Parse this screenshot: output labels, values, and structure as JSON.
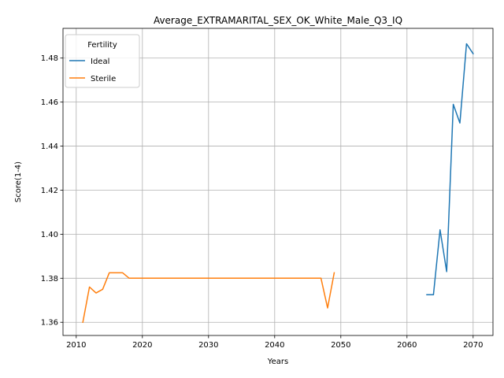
{
  "chart_data": {
    "type": "line",
    "title": "Average_EXTRAMARITAL_SEX_OK_White_Male_Q3_IQ",
    "xlabel": "Years",
    "ylabel": "Score(1-4)",
    "xlim": [
      2008,
      2073
    ],
    "ylim": [
      1.354,
      1.4935
    ],
    "xticks": [
      2010,
      2020,
      2030,
      2040,
      2050,
      2060,
      2070
    ],
    "yticks": [
      1.36,
      1.38,
      1.4,
      1.42,
      1.44,
      1.46,
      1.48
    ],
    "grid": true,
    "legend": {
      "title": "Fertility",
      "placement": "top-left"
    },
    "series": [
      {
        "name": "Ideal",
        "color": "#1f77b4",
        "x": [
          2063,
          2064,
          2065,
          2066,
          2067,
          2068,
          2069,
          2070
        ],
        "y": [
          1.3725,
          1.3725,
          1.402,
          1.383,
          1.459,
          1.4505,
          1.4865,
          1.482
        ]
      },
      {
        "name": "Sterile",
        "color": "#ff7f0e",
        "x": [
          2011,
          2012,
          2013,
          2014,
          2015,
          2016,
          2017,
          2018,
          2019,
          2020,
          2021,
          2022,
          2023,
          2024,
          2025,
          2026,
          2027,
          2028,
          2029,
          2030,
          2031,
          2032,
          2033,
          2034,
          2035,
          2036,
          2037,
          2038,
          2039,
          2040,
          2041,
          2042,
          2043,
          2044,
          2045,
          2046,
          2047,
          2048,
          2049
        ],
        "y": [
          1.36,
          1.376,
          1.3733,
          1.375,
          1.3825,
          1.3825,
          1.3825,
          1.38,
          1.38,
          1.38,
          1.38,
          1.38,
          1.38,
          1.38,
          1.38,
          1.38,
          1.38,
          1.38,
          1.38,
          1.38,
          1.38,
          1.38,
          1.38,
          1.38,
          1.38,
          1.38,
          1.38,
          1.38,
          1.38,
          1.38,
          1.38,
          1.38,
          1.38,
          1.38,
          1.38,
          1.38,
          1.38,
          1.3665,
          1.3825
        ]
      }
    ]
  }
}
